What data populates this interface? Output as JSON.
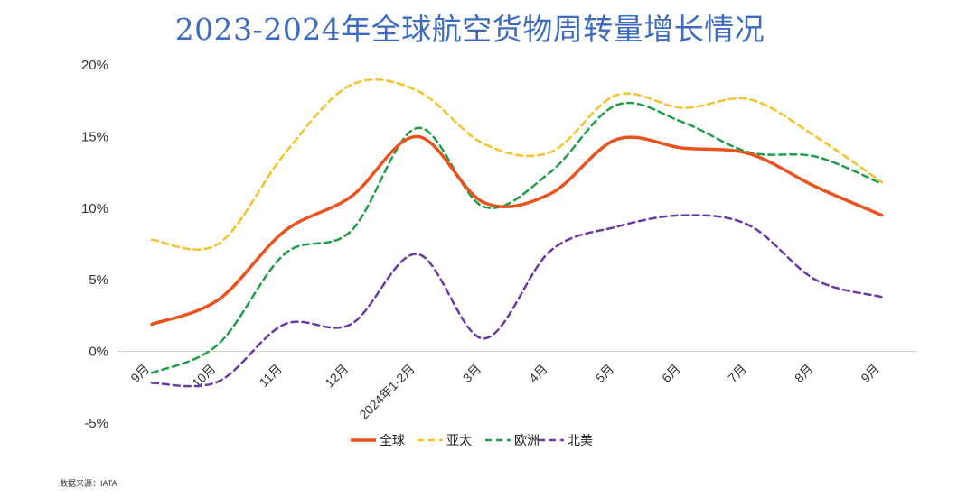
{
  "chart_data": {
    "type": "line",
    "title": "2023-2024年全球航空货物周转量增长情况",
    "categories": [
      "9月",
      "10月",
      "11月",
      "12月",
      "2024年1-2月",
      "3月",
      "4月",
      "5月",
      "6月",
      "7月",
      "8月",
      "9月"
    ],
    "y_ticks": [
      "20%",
      "15%",
      "10%",
      "5%",
      "0%",
      "-5%"
    ],
    "ylim": [
      -5,
      20
    ],
    "grid": false,
    "legend_position": "bottom",
    "series": [
      {
        "name": "全球",
        "color": "#e8531f",
        "dash": "solid",
        "values": [
          1.9,
          3.6,
          8.4,
          10.8,
          15.0,
          10.4,
          11.0,
          14.8,
          14.2,
          13.8,
          11.5,
          9.5
        ]
      },
      {
        "name": "亚太",
        "color": "#f5c22e",
        "dash": "dashed",
        "values": [
          7.8,
          7.5,
          13.8,
          18.6,
          18.2,
          14.5,
          13.9,
          17.9,
          17.0,
          17.6,
          15.0,
          11.8
        ]
      },
      {
        "name": "欧洲",
        "color": "#1f9e49",
        "dash": "dashed",
        "values": [
          -1.5,
          0.5,
          6.8,
          8.4,
          15.6,
          10.1,
          12.5,
          17.2,
          16.0,
          13.9,
          13.6,
          11.7
        ]
      },
      {
        "name": "北美",
        "color": "#6a3aa3",
        "dash": "dashed",
        "values": [
          -2.2,
          -2.1,
          1.9,
          1.9,
          6.8,
          0.9,
          7.0,
          8.7,
          9.5,
          8.8,
          5.0,
          3.8
        ]
      }
    ]
  },
  "source_text": "数据来源：IATA"
}
